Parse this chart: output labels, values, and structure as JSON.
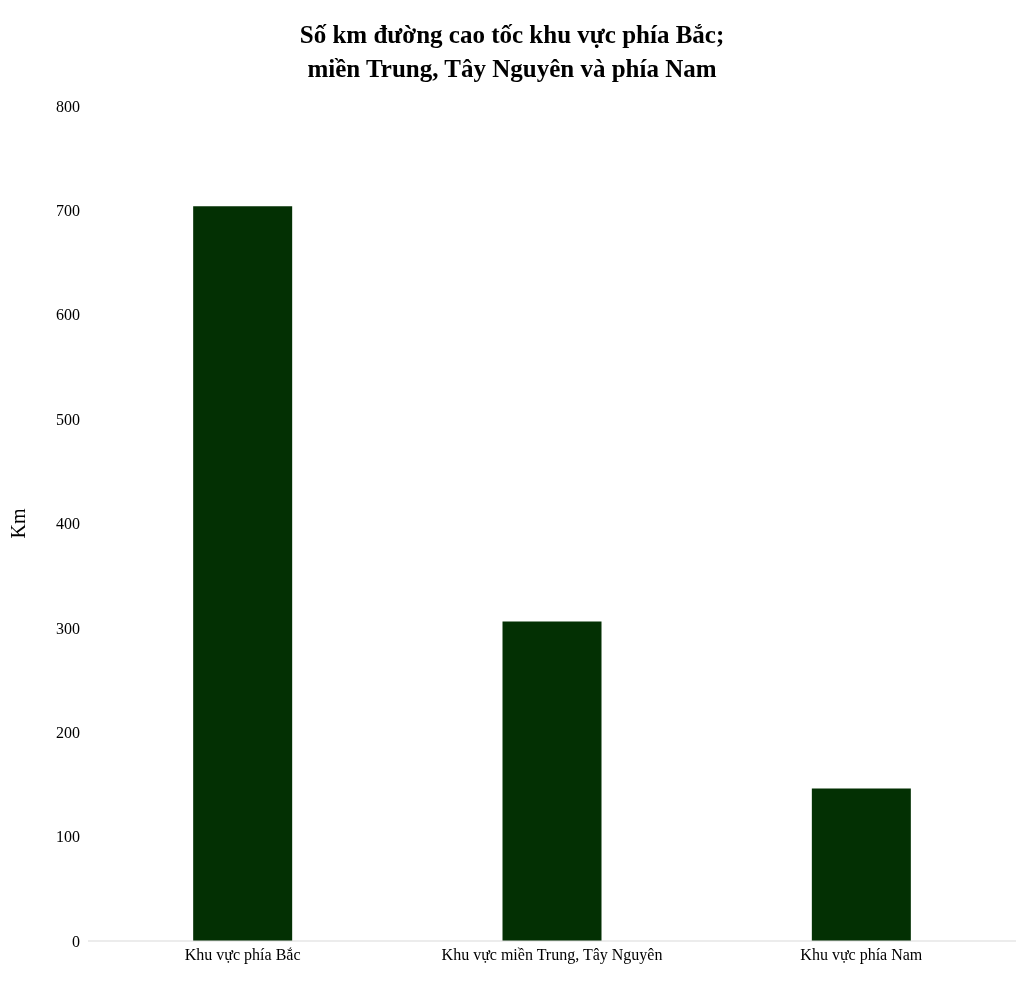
{
  "chart_data": {
    "type": "bar",
    "title": "Số km đường cao tốc khu vực phía Bắc;\nmiền Trung, Tây Nguyên và phía Nam",
    "ylabel": "Km",
    "categories": [
      "Khu vực phía Bắc",
      "Khu vực miền Trung, Tây Nguyên",
      "Khu vực phía Nam"
    ],
    "values": [
      704,
      306,
      146
    ],
    "color": "#033003",
    "ylim": [
      0,
      800
    ],
    "yticks": [
      0,
      100,
      200,
      300,
      400,
      500,
      600,
      700,
      800
    ]
  }
}
